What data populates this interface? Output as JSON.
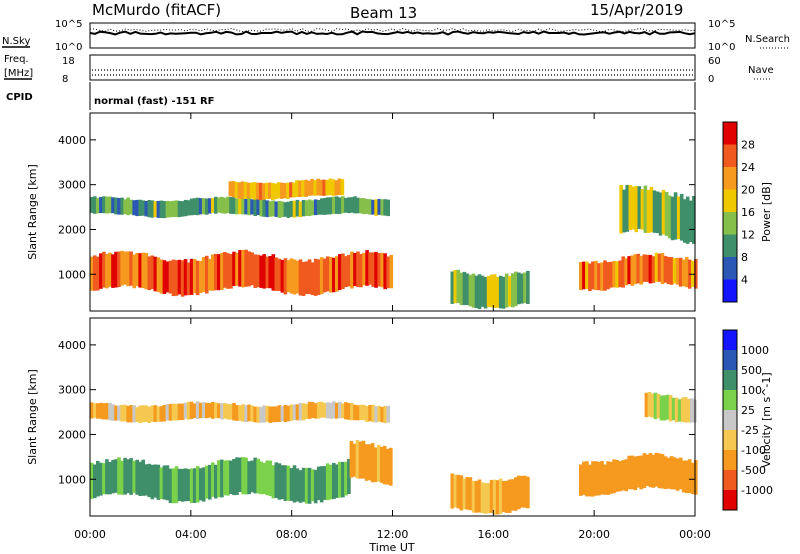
{
  "header": {
    "station": "McMurdo (fitACF)",
    "beam": "Beam 13",
    "date": "15/Apr/2019"
  },
  "aux_panels": {
    "nsky_label": "N.Sky",
    "nsky_ticks": [
      "10^5",
      "10^0"
    ],
    "nsearch_label": "N.Search",
    "nsearch_ticks": [
      "10^5",
      "10^0"
    ],
    "freq_label": "Freq.",
    "freq_unit": "[MHz]",
    "freq_ticks": [
      "18",
      "8"
    ],
    "nave_label": "Nave",
    "nave_ticks": [
      "60",
      "0"
    ],
    "cpid_label": "CPID",
    "cpid_text": "normal (fast) -151 RF"
  },
  "colors": {
    "power_scale": [
      "#1414ff",
      "#2a58b4",
      "#3f8f6a",
      "#86c04a",
      "#f0c800",
      "#f59a1e",
      "#f05a1e",
      "#e00000"
    ],
    "velocity_scale": [
      "#e00000",
      "#f05a1e",
      "#f59a1e",
      "#f5c850",
      "#c8c8c8",
      "#7ad24a",
      "#3f8f6a",
      "#2a58b4",
      "#1414ff"
    ],
    "ground_scatter": "#bdbdbd"
  },
  "chart_data": [
    {
      "type": "heatmap",
      "panel": "power",
      "xlabel": "",
      "ylabel": "Slant Range [km]",
      "colorbar_label": "Power [dB]",
      "colorbar_ticks": [
        "28",
        "24",
        "20",
        "16",
        "12",
        "8",
        "4"
      ],
      "value_range": [
        0,
        32
      ],
      "xlim": [
        "00:00",
        "24:00"
      ],
      "ylim": [
        180,
        4600
      ],
      "yticks": [
        "4000",
        "3000",
        "2000",
        "1000"
      ],
      "echo_regions": [
        {
          "t_start": 0.0,
          "t_end": 11.9,
          "range_low": 600,
          "range_high": 1450,
          "power_db": 26
        },
        {
          "t_start": 0.0,
          "t_end": 11.8,
          "range_low": 2300,
          "range_high": 2700,
          "power_db": 12
        },
        {
          "t_start": 5.5,
          "t_end": 10.0,
          "range_low": 2700,
          "range_high": 3100,
          "power_db": 20
        },
        {
          "t_start": 14.3,
          "t_end": 17.4,
          "range_low": 300,
          "range_high": 1100,
          "power_db": 14
        },
        {
          "t_start": 19.4,
          "t_end": 24.0,
          "range_low": 700,
          "range_high": 1400,
          "power_db": 24
        },
        {
          "t_start": 21.0,
          "t_end": 24.0,
          "range_low": 1800,
          "range_high": 2900,
          "power_db": 14
        }
      ]
    },
    {
      "type": "heatmap",
      "panel": "velocity",
      "xlabel": "Time UT",
      "ylabel": "Slant Range [km]",
      "colorbar_label": "Velocity [m s^-1]",
      "colorbar_ticks": [
        "1000",
        "500",
        "100",
        "25",
        "-25",
        "-100",
        "-500",
        "-1000"
      ],
      "value_range": [
        -1000,
        1000
      ],
      "xlim": [
        "00:00",
        "24:00"
      ],
      "ylim": [
        180,
        4600
      ],
      "xticks": [
        "00:00",
        "04:00",
        "08:00",
        "12:00",
        "16:00",
        "20:00",
        "00:00"
      ],
      "yticks": [
        "4000",
        "3000",
        "2000",
        "1000"
      ],
      "echo_regions": [
        {
          "t_start": 0.0,
          "t_end": 10.3,
          "range_low": 550,
          "range_high": 1400,
          "velocity": 150
        },
        {
          "t_start": 10.3,
          "t_end": 11.9,
          "range_low": 900,
          "range_high": 1800,
          "velocity": -200
        },
        {
          "t_start": 0.0,
          "t_end": 11.8,
          "range_low": 2300,
          "range_high": 2700,
          "velocity": -100
        },
        {
          "t_start": 14.3,
          "t_end": 17.4,
          "range_low": 300,
          "range_high": 1100,
          "velocity": -150
        },
        {
          "t_start": 19.4,
          "t_end": 24.0,
          "range_low": 700,
          "range_high": 1500,
          "velocity": -300
        },
        {
          "t_start": 22.0,
          "t_end": 24.0,
          "range_low": 2300,
          "range_high": 2900,
          "velocity": 0
        }
      ]
    }
  ]
}
